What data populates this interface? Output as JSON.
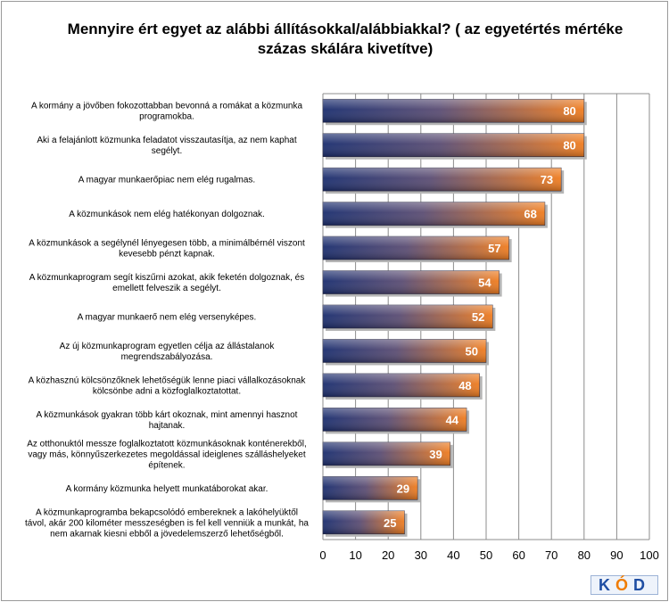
{
  "chart_data": {
    "type": "bar",
    "orientation": "horizontal",
    "title": "Mennyire ért egyet az alábbi állításokkal/alábbiakkal? ( az egyetértés mértéke százas skálára kivetítve)",
    "categories": [
      "A kormány a jövőben fokozottabban bevonná a romákat a közmunka programokba.",
      "Aki a felajánlott közmunka feladatot visszautasítja, az nem kaphat segélyt.",
      "A magyar munkaerőpiac nem elég rugalmas.",
      "A közmunkások nem elég hatékonyan dolgoznak.",
      "A közmunkások a segélynél lényegesen több, a minimálbérnél viszont kevesebb pénzt kapnak.",
      "A közmunkaprogram segít kiszűrni azokat, akik feketén dolgoznak, és emellett felveszik a segélyt.",
      "A magyar munkaerő nem elég versenyképes.",
      "Az új közmunkaprogram egyetlen célja az állástalanok megrendszabályozása.",
      "A közhasznú kölcsönzőknek lehetőségük lenne piaci vállalkozásoknak kölcsönbe adni a közfoglalkoztatottat.",
      "A közmunkások gyakran több kárt okoznak, mint amennyi hasznot hajtanak.",
      "Az otthonuktól messze foglalkoztatott közmunkásoknak konténerekből, vagy más, könnyűszerkezetes megoldással ideiglenes szálláshelyeket építenek.",
      "A kormány közmunka helyett munkatáborokat akar.",
      "A közmunkaprogramba bekapcsolódó embereknek a lakóhelyüktől távol, akár 200 kilométer messzeségben is fel kell venniük a munkát, ha nem akarnak kiesni ebből a jövedelemszerző lehetőségből."
    ],
    "values": [
      80,
      80,
      73,
      68,
      57,
      54,
      52,
      50,
      48,
      44,
      39,
      29,
      25
    ],
    "xlim": [
      0,
      100
    ],
    "x_ticks": [
      0,
      10,
      20,
      30,
      40,
      50,
      60,
      70,
      80,
      90,
      100
    ],
    "grid": true,
    "bar_gradient": [
      "#1a2d6e",
      "#f07c1e"
    ],
    "value_label_color": "#ffffff"
  },
  "logo": {
    "left": "K",
    "accent": "Ó",
    "right": "D"
  }
}
